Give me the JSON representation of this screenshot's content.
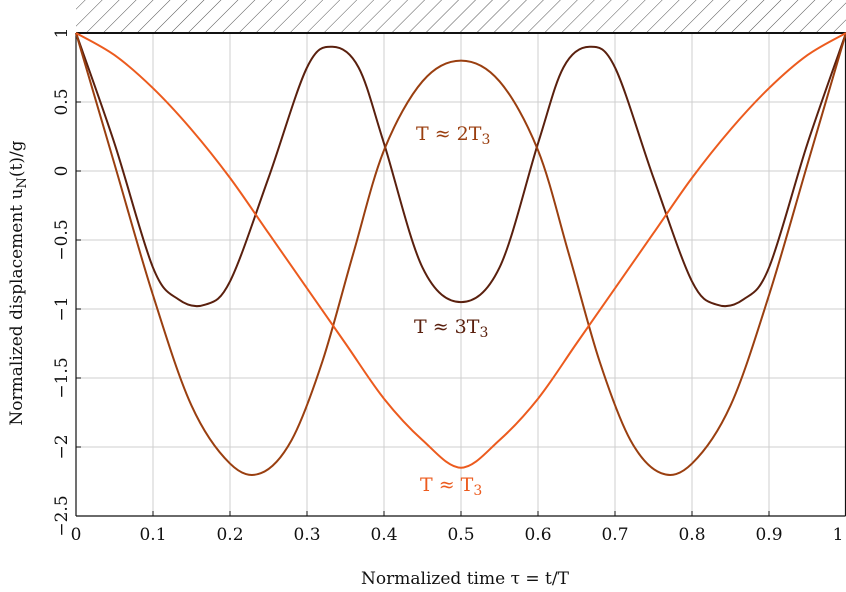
{
  "chart_data": {
    "type": "line",
    "xlabel": "Normalized time τ = t/T",
    "ylabel": "Normalized displacement u_N(t)/g",
    "xlim": [
      0,
      1
    ],
    "ylim": [
      -2.5,
      1
    ],
    "x_ticks": [
      "0",
      "0.1",
      "0.2",
      "0.3",
      "0.4",
      "0.5",
      "0.6",
      "0.7",
      "0.8",
      "0.9",
      "1"
    ],
    "y_ticks": [
      "1",
      "0.5",
      "0",
      "−0.5",
      "−1",
      "−1.5",
      "−2",
      "−2.5"
    ],
    "grid": true,
    "ground_hatch": true,
    "series": [
      {
        "label": "T ≈ 3T₃",
        "color": "#5a200e",
        "x": [
          0,
          0.05,
          0.1,
          0.133,
          0.167,
          0.2,
          0.25,
          0.3,
          0.333,
          0.367,
          0.4,
          0.45,
          0.5,
          0.55,
          0.6,
          0.633,
          0.667,
          0.7,
          0.75,
          0.8,
          0.833,
          0.867,
          0.9,
          0.95,
          1
        ],
        "y": [
          1,
          0.2,
          -0.7,
          -0.93,
          -0.97,
          -0.8,
          -0.05,
          0.75,
          0.9,
          0.75,
          0.2,
          -0.7,
          -0.95,
          -0.7,
          0.2,
          0.75,
          0.9,
          0.75,
          -0.05,
          -0.8,
          -0.97,
          -0.93,
          -0.7,
          0.2,
          1
        ]
      },
      {
        "label": "T ≈ 2T₃",
        "color": "#9a3f10",
        "x": [
          0,
          0.05,
          0.1,
          0.15,
          0.2,
          0.24,
          0.28,
          0.32,
          0.36,
          0.4,
          0.45,
          0.5,
          0.55,
          0.6,
          0.64,
          0.68,
          0.72,
          0.76,
          0.8,
          0.85,
          0.9,
          0.95,
          1
        ],
        "y": [
          1,
          0.05,
          -0.9,
          -1.7,
          -2.12,
          -2.19,
          -1.95,
          -1.38,
          -0.6,
          0.15,
          0.65,
          0.8,
          0.65,
          0.15,
          -0.6,
          -1.38,
          -1.95,
          -2.19,
          -2.12,
          -1.7,
          -0.9,
          0.05,
          1
        ]
      },
      {
        "label": "T ≈ T₃",
        "color": "#ec5b1e",
        "x": [
          0,
          0.05,
          0.1,
          0.15,
          0.2,
          0.25,
          0.3,
          0.35,
          0.4,
          0.45,
          0.5,
          0.55,
          0.6,
          0.65,
          0.7,
          0.75,
          0.8,
          0.85,
          0.9,
          0.95,
          1
        ],
        "y": [
          1,
          0.84,
          0.6,
          0.3,
          -0.05,
          -0.45,
          -0.85,
          -1.25,
          -1.65,
          -1.95,
          -2.15,
          -1.95,
          -1.65,
          -1.25,
          -0.85,
          -0.45,
          -0.05,
          0.3,
          0.6,
          0.84,
          1
        ]
      }
    ]
  }
}
